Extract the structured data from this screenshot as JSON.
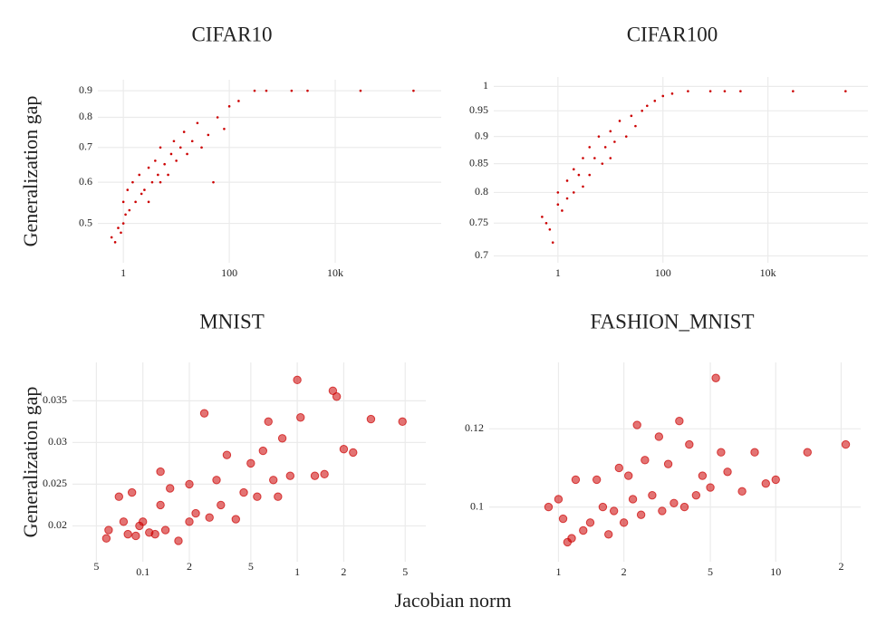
{
  "xlabel": "Jacobian norm",
  "chart_data": [
    {
      "type": "scatter",
      "title": "CIFAR10",
      "ylabel": "Generalization gap",
      "color": "#cc0000",
      "log_x": true,
      "log_y": true,
      "grid": true,
      "x": [
        0.6,
        0.7,
        0.8,
        0.9,
        1,
        1,
        1.1,
        1.2,
        1.3,
        1.5,
        1.7,
        2,
        2.2,
        2.5,
        3,
        3,
        3.5,
        4,
        4.5,
        5,
        5,
        6,
        7,
        8,
        9,
        10,
        12,
        14,
        16,
        20,
        25,
        30,
        40,
        50,
        60,
        80,
        100,
        150,
        300,
        500,
        1500,
        3000,
        30000,
        300000
      ],
      "y": [
        0.47,
        0.46,
        0.49,
        0.48,
        0.5,
        0.55,
        0.52,
        0.58,
        0.53,
        0.6,
        0.55,
        0.62,
        0.57,
        0.58,
        0.64,
        0.55,
        0.6,
        0.66,
        0.62,
        0.6,
        0.7,
        0.65,
        0.62,
        0.68,
        0.72,
        0.66,
        0.7,
        0.75,
        0.68,
        0.72,
        0.78,
        0.7,
        0.74,
        0.6,
        0.8,
        0.76,
        0.84,
        0.86,
        0.9,
        0.9,
        0.9,
        0.9,
        0.9,
        0.9
      ],
      "xlim": [
        0.33,
        1000000
      ],
      "ylim": [
        0.42,
        0.945
      ],
      "xticks": [
        1,
        100,
        {
          "value": 10000,
          "label": "10k"
        }
      ],
      "yticks": [
        0.5,
        0.6,
        0.7,
        0.8,
        0.9
      ]
    },
    {
      "type": "scatter",
      "title": "CIFAR100",
      "color": "#cc0000",
      "log_x": true,
      "log_y": true,
      "grid": true,
      "x": [
        0.5,
        0.6,
        0.7,
        0.8,
        1,
        1,
        1.2,
        1.5,
        1.5,
        2,
        2,
        2.5,
        3,
        3,
        4,
        4,
        5,
        6,
        7,
        8,
        10,
        10,
        12,
        15,
        20,
        25,
        30,
        40,
        50,
        70,
        100,
        150,
        300,
        800,
        1500,
        3000,
        30000,
        300000
      ],
      "y": [
        0.76,
        0.75,
        0.74,
        0.72,
        0.78,
        0.8,
        0.77,
        0.82,
        0.79,
        0.84,
        0.8,
        0.83,
        0.86,
        0.81,
        0.88,
        0.83,
        0.86,
        0.9,
        0.85,
        0.88,
        0.91,
        0.86,
        0.89,
        0.93,
        0.9,
        0.94,
        0.92,
        0.95,
        0.96,
        0.97,
        0.98,
        0.985,
        0.99,
        0.99,
        0.99,
        0.99,
        0.99,
        0.99
      ],
      "xlim": [
        0.06,
        800000
      ],
      "ylim": [
        0.69,
        1.02
      ],
      "xticks": [
        1,
        100,
        {
          "value": 10000,
          "label": "10k"
        }
      ],
      "yticks": [
        0.7,
        0.75,
        0.8,
        0.85,
        0.9,
        0.95,
        1
      ]
    },
    {
      "type": "scatter",
      "title": "MNIST",
      "ylabel": "Generalization gap",
      "color": "#cc0000",
      "log_x": true,
      "log_y": false,
      "grid": true,
      "x": [
        0.058,
        0.06,
        0.07,
        0.075,
        0.08,
        0.085,
        0.09,
        0.095,
        0.1,
        0.11,
        0.12,
        0.13,
        0.13,
        0.14,
        0.15,
        0.17,
        0.2,
        0.2,
        0.22,
        0.25,
        0.27,
        0.3,
        0.32,
        0.35,
        0.4,
        0.45,
        0.5,
        0.55,
        0.6,
        0.65,
        0.7,
        0.75,
        0.8,
        0.9,
        1,
        1.05,
        1.3,
        1.5,
        1.7,
        1.8,
        2,
        2.3,
        3,
        4.8
      ],
      "y": [
        0.0185,
        0.0195,
        0.0235,
        0.0205,
        0.019,
        0.024,
        0.0188,
        0.02,
        0.0205,
        0.0192,
        0.019,
        0.0265,
        0.0225,
        0.0195,
        0.0245,
        0.0182,
        0.0205,
        0.025,
        0.0215,
        0.0335,
        0.021,
        0.0255,
        0.0225,
        0.0285,
        0.0208,
        0.024,
        0.0275,
        0.0235,
        0.029,
        0.0325,
        0.0255,
        0.0235,
        0.0305,
        0.026,
        0.0375,
        0.033,
        0.026,
        0.0262,
        0.0362,
        0.0355,
        0.0292,
        0.0288,
        0.0328,
        0.0325
      ],
      "xlim": [
        0.035,
        6.8
      ],
      "ylim": [
        0.0157,
        0.0396
      ],
      "xticks": [
        {
          "value": 0.05,
          "label": "5"
        },
        0.1,
        {
          "value": 0.2,
          "label": "2"
        },
        {
          "value": 0.5,
          "label": "5"
        },
        1,
        2,
        5
      ],
      "yticks": [
        0.02,
        0.025,
        0.03,
        0.035
      ]
    },
    {
      "type": "scatter",
      "title": "FASHION_MNIST",
      "color": "#cc0000",
      "log_x": true,
      "log_y": false,
      "grid": true,
      "x": [
        0.9,
        1,
        1.05,
        1.1,
        1.15,
        1.2,
        1.3,
        1.4,
        1.5,
        1.6,
        1.7,
        1.8,
        1.9,
        2,
        2.1,
        2.2,
        2.3,
        2.4,
        2.5,
        2.7,
        2.9,
        3,
        3.2,
        3.4,
        3.6,
        3.8,
        4,
        4.3,
        4.6,
        5,
        5.3,
        5.6,
        6,
        7,
        8,
        9,
        10,
        14,
        21
      ],
      "y": [
        0.1,
        0.102,
        0.097,
        0.091,
        0.092,
        0.107,
        0.094,
        0.096,
        0.107,
        0.1,
        0.093,
        0.099,
        0.11,
        0.096,
        0.108,
        0.102,
        0.121,
        0.098,
        0.112,
        0.103,
        0.118,
        0.099,
        0.111,
        0.101,
        0.122,
        0.1,
        0.116,
        0.103,
        0.108,
        0.105,
        0.133,
        0.114,
        0.109,
        0.104,
        0.114,
        0.106,
        0.107,
        0.114,
        0.116
      ],
      "xlim": [
        0.48,
        24.6
      ],
      "ylim": [
        0.086,
        0.137
      ],
      "xticks": [
        1,
        2,
        5,
        10,
        {
          "value": 20,
          "label": "2"
        }
      ],
      "yticks": [
        0.1,
        0.12
      ]
    }
  ]
}
